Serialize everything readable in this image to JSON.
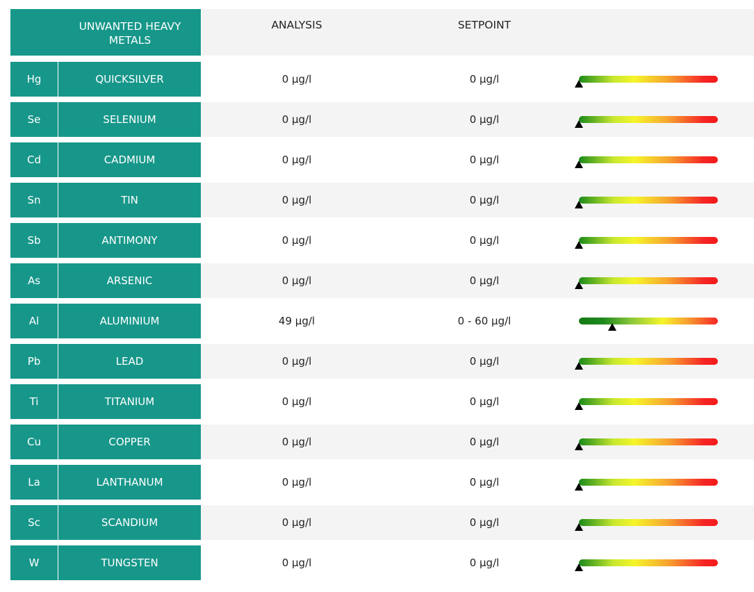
{
  "header": {
    "title": "UNWANTED HEAVY METALS",
    "analysis": "ANALYSIS",
    "setpoint": "SETPOINT"
  },
  "rows": [
    {
      "symbol": "Hg",
      "name": "QUICKSILVER",
      "analysis": "0 µg/l",
      "setpoint": "0 µg/l"
    },
    {
      "symbol": "Se",
      "name": "SELENIUM",
      "analysis": "0 µg/l",
      "setpoint": "0 µg/l"
    },
    {
      "symbol": "Cd",
      "name": "CADMIUM",
      "analysis": "0 µg/l",
      "setpoint": "0 µg/l"
    },
    {
      "symbol": "Sn",
      "name": "TIN",
      "analysis": "0 µg/l",
      "setpoint": "0 µg/l"
    },
    {
      "symbol": "Sb",
      "name": "ANTIMONY",
      "analysis": "0 µg/l",
      "setpoint": "0 µg/l"
    },
    {
      "symbol": "As",
      "name": "ARSENIC",
      "analysis": "0 µg/l",
      "setpoint": "0 µg/l"
    },
    {
      "symbol": "Al",
      "name": "ALUMINIUM",
      "analysis": "49 µg/l",
      "setpoint": "0 - 60 µg/l"
    },
    {
      "symbol": "Pb",
      "name": "LEAD",
      "analysis": "0 µg/l",
      "setpoint": "0 µg/l"
    },
    {
      "symbol": "Ti",
      "name": "TITANIUM",
      "analysis": "0 µg/l",
      "setpoint": "0 µg/l"
    },
    {
      "symbol": "Cu",
      "name": "COPPER",
      "analysis": "0 µg/l",
      "setpoint": "0 µg/l"
    },
    {
      "symbol": "La",
      "name": "LANTHANUM",
      "analysis": "0 µg/l",
      "setpoint": "0 µg/l"
    },
    {
      "symbol": "Sc",
      "name": "SCANDIUM",
      "analysis": "0 µg/l",
      "setpoint": "0 µg/l"
    },
    {
      "symbol": "W",
      "name": "TUNGSTEN",
      "analysis": "0 µg/l",
      "setpoint": "0 µg/l"
    }
  ]
}
